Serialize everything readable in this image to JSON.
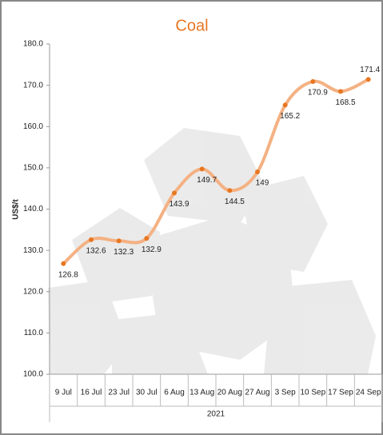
{
  "chart_data": {
    "type": "line",
    "title": "Coal",
    "y_label": "US$/t",
    "categories": [
      "9 Jul",
      "16 Jul",
      "23 Jul",
      "30 Jul",
      "6 Aug",
      "13 Aug",
      "20 Aug",
      "27 Aug",
      "3 Sep",
      "10 Sep",
      "17 Sep",
      "24 Sep"
    ],
    "group_label": "2021",
    "series": [
      {
        "name": "Coal",
        "color": "#f4b183",
        "marker_color": "#e87722",
        "values": [
          126.8,
          132.6,
          132.3,
          132.9,
          143.9,
          149.7,
          144.5,
          149.0,
          165.2,
          170.9,
          168.5,
          171.4
        ]
      }
    ],
    "ylim": [
      100,
      180
    ],
    "yticks": [
      {
        "value": 100,
        "label": "100.0"
      },
      {
        "value": 110,
        "label": "110.0"
      },
      {
        "value": 120,
        "label": "120.0"
      },
      {
        "value": 130,
        "label": "130.0"
      },
      {
        "value": 140,
        "label": "140.0"
      },
      {
        "value": 150,
        "label": "150.0"
      },
      {
        "value": 160,
        "label": "160.0"
      },
      {
        "value": 170,
        "label": "170.0"
      },
      {
        "value": 180,
        "label": "180.0"
      }
    ],
    "grid": false
  }
}
